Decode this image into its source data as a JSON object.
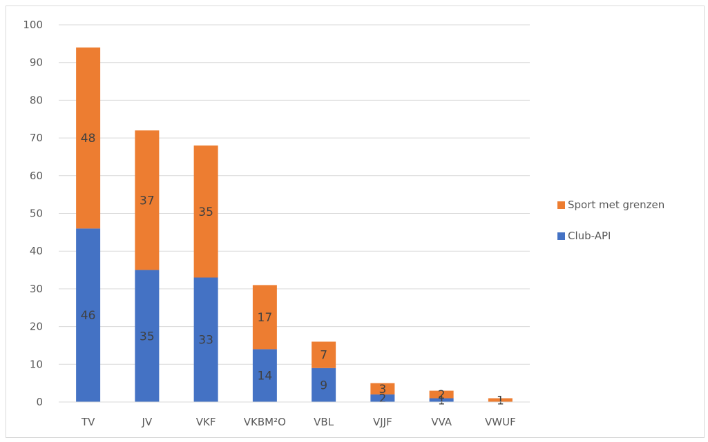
{
  "chart_data": {
    "type": "bar",
    "stacked": true,
    "categories": [
      "TV",
      "JV",
      "VKF",
      "VKBM²O",
      "VBL",
      "VJJF",
      "VVA",
      "VWUF"
    ],
    "series": [
      {
        "name": "Club-API",
        "color": "#4472C4",
        "values": [
          46,
          35,
          33,
          14,
          9,
          2,
          1,
          0
        ],
        "labels": [
          "46",
          "35",
          "33",
          "14",
          "9",
          "2",
          "1",
          ""
        ]
      },
      {
        "name": "Sport met grenzen",
        "color": "#ED7D31",
        "values": [
          48,
          37,
          35,
          17,
          7,
          3,
          2,
          1
        ],
        "labels": [
          "48",
          "37",
          "35",
          "17",
          "7",
          "3",
          "2",
          "1"
        ]
      }
    ],
    "ylim": [
      0,
      100
    ],
    "yticks": [
      0,
      10,
      20,
      30,
      40,
      50,
      60,
      70,
      80,
      90,
      100
    ],
    "grid": true,
    "legend": {
      "position": "right",
      "entries": [
        "Sport met grenzen",
        "Club-API"
      ]
    },
    "title": "",
    "xlabel": "",
    "ylabel": ""
  }
}
